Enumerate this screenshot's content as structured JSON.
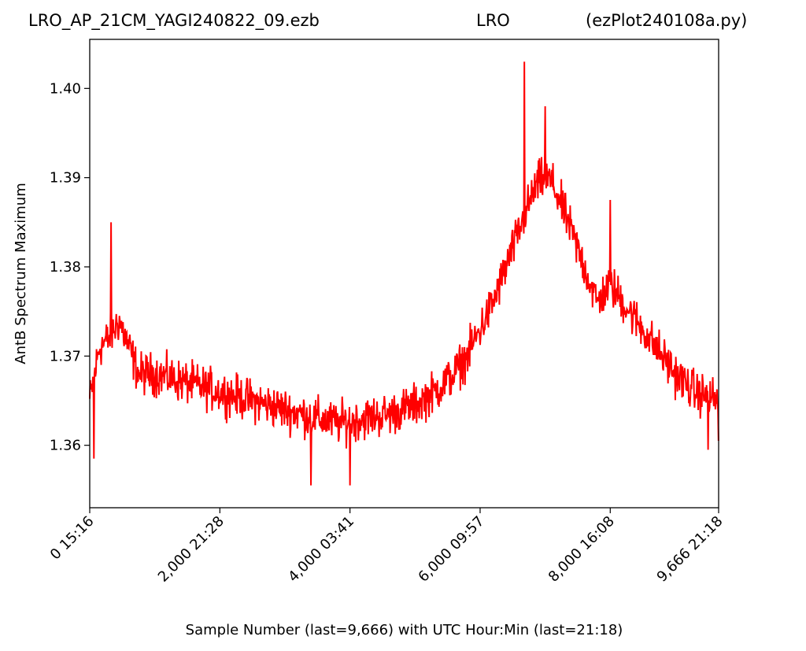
{
  "title": {
    "left": "LRO_AP_21CM_YAGI240822_09.ezb",
    "center": "LRO",
    "right": "(ezPlot240108a.py)"
  },
  "chart_data": {
    "type": "line",
    "xlabel": "Sample Number (last=9,666) with UTC Hour:Min (last=21:18)",
    "ylabel": "AntB Spectrum Maximum",
    "xlim": [
      0,
      9666
    ],
    "ylim": [
      1.353,
      1.4055
    ],
    "grid": false,
    "x_ticks": [
      {
        "value": 0,
        "label": "0  15:16"
      },
      {
        "value": 2000,
        "label": "2,000  21:28"
      },
      {
        "value": 4000,
        "label": "4,000  03:41"
      },
      {
        "value": 6000,
        "label": "6,000  09:57"
      },
      {
        "value": 8000,
        "label": "8,000  16:08"
      },
      {
        "value": 9666,
        "label": "9,666  21:18"
      }
    ],
    "y_ticks": [
      {
        "value": 1.36,
        "label": "1.36"
      },
      {
        "value": 1.37,
        "label": "1.37"
      },
      {
        "value": 1.38,
        "label": "1.38"
      },
      {
        "value": 1.39,
        "label": "1.39"
      },
      {
        "value": 1.4,
        "label": "1.40"
      }
    ],
    "series": [
      {
        "color": "#ff0000",
        "trend_x": [
          0,
          150,
          300,
          450,
          600,
          750,
          1000,
          1500,
          2000,
          2500,
          3000,
          3500,
          3800,
          4200,
          4600,
          5000,
          5300,
          5600,
          5800,
          6000,
          6200,
          6400,
          6600,
          6800,
          6900,
          7000,
          7100,
          7300,
          7500,
          7700,
          7800,
          7900,
          8000,
          8300,
          8600,
          9000,
          9300,
          9666
        ],
        "trend_y": [
          1.365,
          1.371,
          1.372,
          1.374,
          1.371,
          1.368,
          1.368,
          1.367,
          1.366,
          1.365,
          1.364,
          1.363,
          1.3625,
          1.363,
          1.3635,
          1.3645,
          1.366,
          1.368,
          1.37,
          1.373,
          1.376,
          1.38,
          1.384,
          1.388,
          1.3895,
          1.39,
          1.3895,
          1.386,
          1.382,
          1.378,
          1.376,
          1.377,
          1.378,
          1.375,
          1.372,
          1.368,
          1.366,
          1.365
        ],
        "noise": 0.0035,
        "spikes": [
          {
            "x": 330,
            "y": 1.385
          },
          {
            "x": 6680,
            "y": 1.403
          },
          {
            "x": 7000,
            "y": 1.398
          },
          {
            "x": 8000,
            "y": 1.3875
          },
          {
            "x": 4000,
            "y": 1.3555
          },
          {
            "x": 3400,
            "y": 1.3555
          },
          {
            "x": 9500,
            "y": 1.3595
          },
          {
            "x": 9666,
            "y": 1.3605
          },
          {
            "x": 60,
            "y": 1.3585
          }
        ]
      }
    ]
  }
}
